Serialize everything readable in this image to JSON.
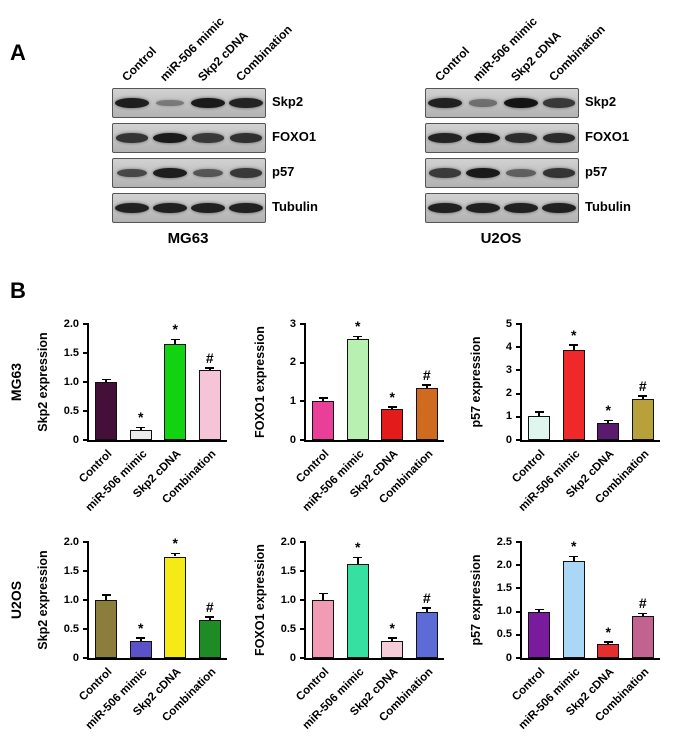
{
  "figure": {
    "panel_a_label": "A",
    "panel_b_label": "B"
  },
  "lane_labels": [
    "Control",
    "miR-506 mimic",
    "Skp2 cDNA",
    "Combination"
  ],
  "row_labels": [
    "MG63",
    "U2OS"
  ],
  "blots": [
    {
      "cell_line": "MG63",
      "rows": [
        {
          "protein": "Skp2",
          "bands": [
            0.92,
            0.22,
            0.95,
            0.88
          ]
        },
        {
          "protein": "FOXO1",
          "bands": [
            0.75,
            0.95,
            0.72,
            0.78
          ]
        },
        {
          "protein": "p57",
          "bands": [
            0.6,
            0.92,
            0.5,
            0.72
          ]
        },
        {
          "protein": "Tubulin",
          "bands": [
            0.9,
            0.9,
            0.9,
            0.9
          ]
        }
      ]
    },
    {
      "cell_line": "U2OS",
      "rows": [
        {
          "protein": "Skp2",
          "bands": [
            0.9,
            0.3,
            1.0,
            0.72
          ]
        },
        {
          "protein": "FOXO1",
          "bands": [
            0.88,
            0.95,
            0.8,
            0.82
          ]
        },
        {
          "protein": "p57",
          "bands": [
            0.7,
            0.95,
            0.42,
            0.75
          ]
        },
        {
          "protein": "Tubulin",
          "bands": [
            0.9,
            0.9,
            0.9,
            0.9
          ]
        }
      ]
    }
  ],
  "chart_data": [
    {
      "type": "bar",
      "group": "MG63",
      "ylabel": "Skp2 expression",
      "categories": [
        "Control",
        "miR-506 mimic",
        "Skp2 cDNA",
        "Combination"
      ],
      "values": [
        1.0,
        0.18,
        1.65,
        1.2
      ],
      "errors": [
        0.03,
        0.02,
        0.07,
        0.03
      ],
      "annotations": [
        "",
        "*",
        "*",
        "#"
      ],
      "colors": [
        "#441039",
        "#ebebeb",
        "#12d312",
        "#f6c4d7"
      ],
      "ylim": [
        0,
        2
      ],
      "yticks": [
        "0",
        "0.5",
        "1.0",
        "1.5",
        "2.0"
      ]
    },
    {
      "type": "bar",
      "group": "MG63",
      "ylabel": "FOXO1 expression",
      "categories": [
        "Control",
        "miR-506 mimic",
        "Skp2 cDNA",
        "Combination"
      ],
      "values": [
        1.0,
        2.6,
        0.8,
        1.35
      ],
      "errors": [
        0.06,
        0.06,
        0.04,
        0.05
      ],
      "annotations": [
        "",
        "*",
        "*",
        "#"
      ],
      "colors": [
        "#ea3f98",
        "#b8f0b2",
        "#e31b1b",
        "#cf6a1f"
      ],
      "ylim": [
        0,
        3
      ],
      "yticks": [
        "0",
        "1",
        "2",
        "3"
      ]
    },
    {
      "type": "bar",
      "group": "MG63",
      "ylabel": "p57 expression",
      "categories": [
        "Control",
        "miR-506 mimic",
        "Skp2 cDNA",
        "Combination"
      ],
      "values": [
        1.05,
        3.9,
        0.75,
        1.75
      ],
      "errors": [
        0.12,
        0.15,
        0.06,
        0.1
      ],
      "annotations": [
        "",
        "*",
        "*",
        "#"
      ],
      "colors": [
        "#def6ee",
        "#ef2929",
        "#5c1a6e",
        "#b8a13a"
      ],
      "ylim": [
        0,
        5
      ],
      "yticks": [
        "0",
        "1",
        "2",
        "3",
        "4",
        "5"
      ]
    },
    {
      "type": "bar",
      "group": "U2OS",
      "ylabel": "Skp2 expression",
      "categories": [
        "Control",
        "miR-506 mimic",
        "Skp2 cDNA",
        "Combination"
      ],
      "values": [
        1.0,
        0.3,
        1.75,
        0.65
      ],
      "errors": [
        0.07,
        0.03,
        0.04,
        0.04
      ],
      "annotations": [
        "",
        "*",
        "*",
        "#"
      ],
      "colors": [
        "#8b7d3c",
        "#5b51c9",
        "#f5ea16",
        "#1f8b24"
      ],
      "ylim": [
        0,
        2
      ],
      "yticks": [
        "0",
        "0.5",
        "1.0",
        "1.5",
        "2.0"
      ]
    },
    {
      "type": "bar",
      "group": "U2OS",
      "ylabel": "FOXO1 expression",
      "categories": [
        "Control",
        "miR-506 mimic",
        "Skp2 cDNA",
        "Combination"
      ],
      "values": [
        1.0,
        1.62,
        0.3,
        0.8
      ],
      "errors": [
        0.1,
        0.1,
        0.03,
        0.05
      ],
      "annotations": [
        "",
        "*",
        "*",
        "#"
      ],
      "colors": [
        "#f29bb5",
        "#35e0a1",
        "#f6ccd9",
        "#5d6bd6"
      ],
      "ylim": [
        0,
        2
      ],
      "yticks": [
        "0",
        "0.5",
        "1.0",
        "1.5",
        "2.0"
      ]
    },
    {
      "type": "bar",
      "group": "U2OS",
      "ylabel": "p57 expression",
      "categories": [
        "Control",
        "miR-506 mimic",
        "Skp2 cDNA",
        "Combination"
      ],
      "values": [
        1.0,
        2.1,
        0.3,
        0.9
      ],
      "errors": [
        0.03,
        0.07,
        0.03,
        0.04
      ],
      "annotations": [
        "",
        "*",
        "*",
        "#"
      ],
      "colors": [
        "#7a1b9e",
        "#a9d7f5",
        "#e62e2e",
        "#c2638f"
      ],
      "ylim": [
        0,
        2.5
      ],
      "yticks": [
        "0",
        "0.5",
        "1.0",
        "1.5",
        "2.0",
        "2.5"
      ]
    }
  ]
}
